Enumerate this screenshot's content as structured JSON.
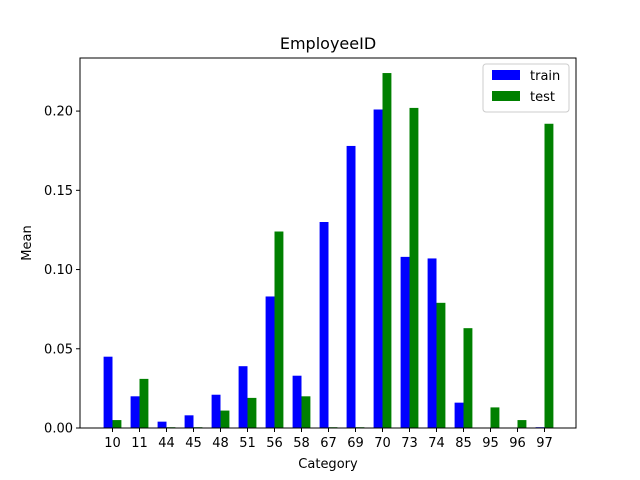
{
  "chart_data": {
    "type": "bar",
    "title": "EmployeeID",
    "xlabel": "Category",
    "ylabel": "Mean",
    "categories": [
      "10",
      "11",
      "44",
      "45",
      "48",
      "51",
      "56",
      "58",
      "67",
      "69",
      "70",
      "73",
      "74",
      "85",
      "95",
      "96",
      "97"
    ],
    "series": [
      {
        "name": "train",
        "color": "#0000ff",
        "values": [
          0.045,
          0.02,
          0.004,
          0.008,
          0.021,
          0.039,
          0.083,
          0.033,
          0.13,
          0.178,
          0.201,
          0.108,
          0.107,
          0.016,
          0.0,
          0.0,
          0.0005
        ]
      },
      {
        "name": "test",
        "color": "#008000",
        "values": [
          0.005,
          0.031,
          0.0005,
          0.0005,
          0.011,
          0.019,
          0.124,
          0.02,
          0.0005,
          0.0005,
          0.224,
          0.202,
          0.079,
          0.063,
          0.013,
          0.005,
          0.192
        ]
      }
    ],
    "ylim": [
      0,
      0.2335
    ],
    "yticks": [
      0.0,
      0.05,
      0.1,
      0.15,
      0.2
    ],
    "ytick_labels": [
      "0.00",
      "0.05",
      "0.10",
      "0.15",
      "0.20"
    ],
    "legend": "top-right",
    "grid": false
  }
}
